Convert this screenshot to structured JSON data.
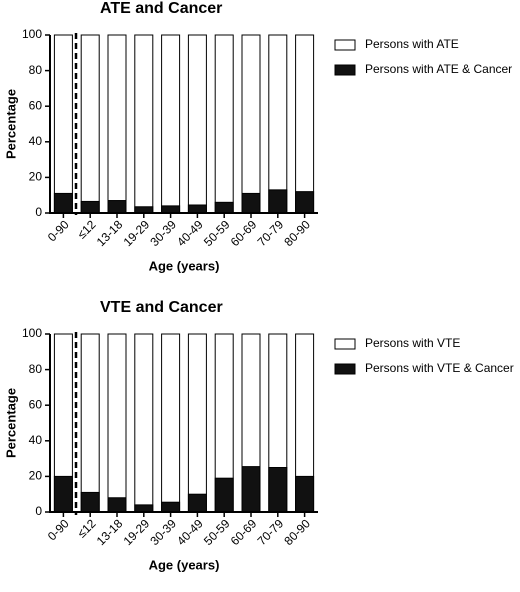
{
  "chart_data": [
    {
      "type": "bar",
      "title": "ATE and Cancer",
      "x_label": "Age (years)",
      "y_label": "Percentage",
      "categories": [
        "0-90",
        "≤12",
        "13-18",
        "19-29",
        "30-39",
        "40-49",
        "50-59",
        "60-69",
        "70-79",
        "80-90"
      ],
      "series": [
        {
          "name": "Persons with ATE",
          "color": "#ffffff",
          "values": [
            100,
            100,
            100,
            100,
            100,
            100,
            100,
            100,
            100,
            100
          ]
        },
        {
          "name": "Persons with ATE & Cancer",
          "color": "#111111",
          "values": [
            11,
            6.5,
            7,
            3.5,
            4,
            4.5,
            6,
            11,
            13,
            12
          ]
        }
      ],
      "ylim": [
        0,
        100
      ],
      "yticks": [
        0,
        20,
        40,
        60,
        80,
        100
      ]
    },
    {
      "type": "bar",
      "title": "VTE and Cancer",
      "x_label": "Age (years)",
      "y_label": "Percentage",
      "categories": [
        "0-90",
        "≤12",
        "13-18",
        "19-29",
        "30-39",
        "40-49",
        "50-59",
        "60-69",
        "70-79",
        "80-90"
      ],
      "series": [
        {
          "name": "Persons with VTE",
          "color": "#ffffff",
          "values": [
            100,
            100,
            100,
            100,
            100,
            100,
            100,
            100,
            100,
            100
          ]
        },
        {
          "name": "Persons with VTE & Cancer",
          "color": "#111111",
          "values": [
            20,
            11,
            8,
            4,
            5.5,
            10,
            19,
            25.5,
            25,
            20
          ]
        }
      ],
      "ylim": [
        0,
        100
      ],
      "yticks": [
        0,
        20,
        40,
        60,
        80,
        100
      ]
    }
  ]
}
